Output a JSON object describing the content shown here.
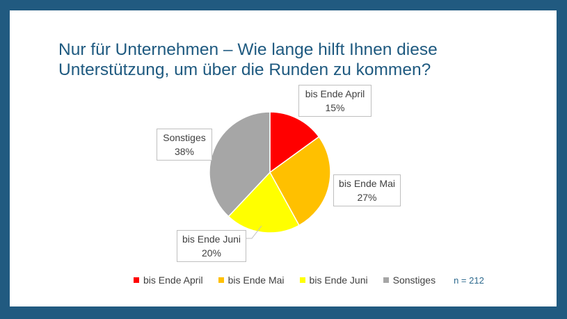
{
  "title_lines": [
    "Nur für Unternehmen – Wie lange hilft Ihnen diese",
    "Unterstützung, um über die Runden zu kommen?"
  ],
  "sample_size": "n = 212",
  "colors": {
    "frame": "#215a80",
    "title": "#1f5a80"
  },
  "chart_data": {
    "type": "pie",
    "title": "Nur für Unternehmen – Wie lange hilft Ihnen diese Unterstützung, um über die Runden zu kommen?",
    "legend_position": "bottom",
    "slices": [
      {
        "label": "bis Ende April",
        "value": 15,
        "display": "15%",
        "color": "#ff0000"
      },
      {
        "label": "bis Ende Mai",
        "value": 27,
        "display": "27%",
        "color": "#ffc000"
      },
      {
        "label": "bis Ende Juni",
        "value": 20,
        "display": "20%",
        "color": "#ffff00"
      },
      {
        "label": "Sonstiges",
        "value": 38,
        "display": "38%",
        "color": "#a6a6a6"
      }
    ]
  }
}
